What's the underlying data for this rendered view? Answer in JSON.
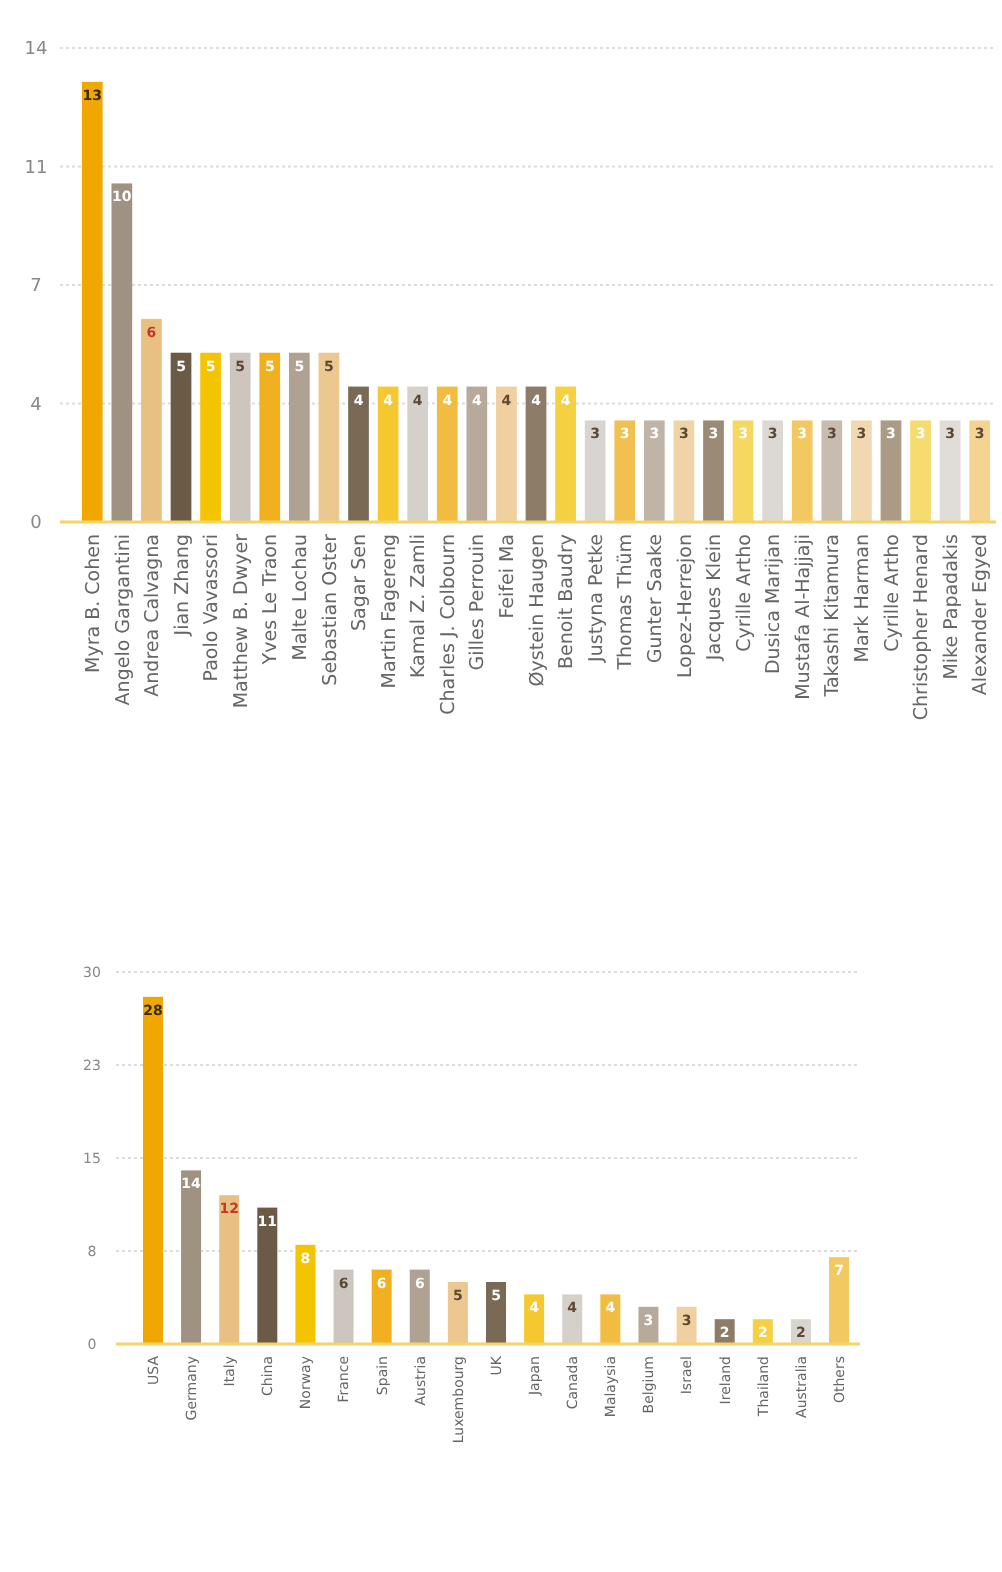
{
  "chart_data": [
    {
      "type": "bar",
      "categories": [
        "Myra B. Cohen",
        "Angelo Gargantini",
        "Andrea Calvagna",
        "Jian Zhang",
        "Paolo Vavassori",
        "Matthew B. Dwyer",
        "Yves Le Traon",
        "Malte Lochau",
        "Sebastian Oster",
        "Sagar Sen",
        "Martin Fagereng",
        "Kamal Z. Zamli",
        "Charles J. Colbourn",
        "Gilles Perrouin",
        "Feifei Ma",
        "Øystein Haugen",
        "Benoit Baudry",
        "Justyna Petke",
        "Thomas Thüm",
        "Gunter Saake",
        "Lopez-Herrejon",
        "Jacques Klein",
        "Cyrille Artho",
        "Dusica Marijan",
        "Mustafa Al-Hajjaji",
        "Takashi Kitamura",
        "Mark Harman",
        "Cyrille Artho",
        "Christopher Henard",
        "Mike Papadakis",
        "Alexander Egyed"
      ],
      "values": [
        13,
        10,
        6,
        5,
        5,
        5,
        5,
        5,
        5,
        4,
        4,
        4,
        4,
        4,
        4,
        4,
        4,
        3,
        3,
        3,
        3,
        3,
        3,
        3,
        3,
        3,
        3,
        3,
        3,
        3,
        3
      ],
      "colors": [
        "#f0a800",
        "#a09282",
        "#e8c084",
        "#6b5a45",
        "#f5c400",
        "#cdc6bf",
        "#f0b020",
        "#b0a292",
        "#ecc890",
        "#7a6a55",
        "#f5c830",
        "#d6d0ca",
        "#f2bc40",
        "#b8aa9a",
        "#f0d0a0",
        "#8c7c68",
        "#f5d040",
        "#d8d4d0",
        "#f2c050",
        "#c0b4a6",
        "#f0d4a8",
        "#9a8a76",
        "#f6d860",
        "#dcd8d4",
        "#f4c860",
        "#c8bcae",
        "#f2d8b0",
        "#aa9a86",
        "#f6dc70",
        "#e0dcd8",
        "#f4d490"
      ],
      "ylim": [
        0,
        14
      ],
      "yticks": [
        0,
        {
          "value": 3.5,
          "label": "4"
        },
        7,
        {
          "value": 10.5,
          "label": "11"
        },
        14
      ],
      "grid": true,
      "data_labels": true
    },
    {
      "type": "bar",
      "categories": [
        "USA",
        "Germany",
        "Italy",
        "China",
        "Norway",
        "France",
        "Spain",
        "Austria",
        "Luxembourg",
        "UK",
        "Japan",
        "Canada",
        "Malaysia",
        "Belgium",
        "Israel",
        "Ireland",
        "Thailand",
        "Australia",
        "Others"
      ],
      "values": [
        28,
        14,
        12,
        11,
        8,
        6,
        6,
        6,
        5,
        5,
        4,
        4,
        4,
        3,
        3,
        2,
        2,
        2,
        7
      ],
      "colors": [
        "#f0a800",
        "#a09282",
        "#e8c084",
        "#6b5a45",
        "#f5c400",
        "#cdc6bf",
        "#f0b020",
        "#b0a292",
        "#ecc890",
        "#7a6a55",
        "#f5c830",
        "#d6d0ca",
        "#f2bc40",
        "#b8aa9a",
        "#f0d0a0",
        "#8c7c68",
        "#f5d040",
        "#d8d4d0",
        "#f2c860"
      ],
      "ylim": [
        0,
        30
      ],
      "yticks": [
        0,
        {
          "value": 7.5,
          "label": "8"
        },
        15,
        {
          "value": 22.5,
          "label": "23"
        },
        30
      ],
      "grid": true,
      "data_labels": true
    }
  ]
}
